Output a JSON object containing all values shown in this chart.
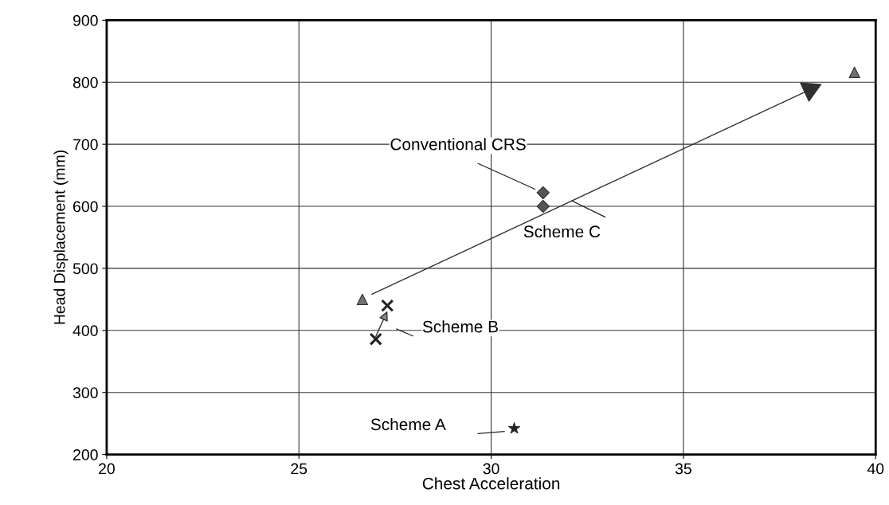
{
  "chart_data": {
    "type": "scatter",
    "xlabel": "Chest Acceleration",
    "ylabel": "Head Displacement (mm)",
    "xlim": [
      20,
      40
    ],
    "xticks": [
      20,
      25,
      30,
      35,
      40
    ],
    "ylim": [
      200,
      900
    ],
    "yticks": [
      200,
      300,
      400,
      500,
      600,
      700,
      800,
      900
    ],
    "grid": true,
    "series": [
      {
        "marker": "triangle",
        "color": "#707070",
        "x": [
          26.65,
          39.45
        ],
        "values": [
          450,
          816
        ]
      },
      {
        "marker": "diamond",
        "color": "#555555",
        "x": [
          31.35,
          31.35
        ],
        "values": [
          622,
          600
        ]
      },
      {
        "marker": "cross",
        "color": "#222222",
        "x": [
          27.3,
          27.0
        ],
        "values": [
          440,
          386
        ]
      },
      {
        "marker": "star",
        "color": "#222222",
        "x": [
          30.6
        ],
        "values": [
          242
        ]
      }
    ],
    "annotations": [
      "Conventional CRS",
      "Scheme C",
      "Scheme B",
      "Scheme A"
    ]
  }
}
